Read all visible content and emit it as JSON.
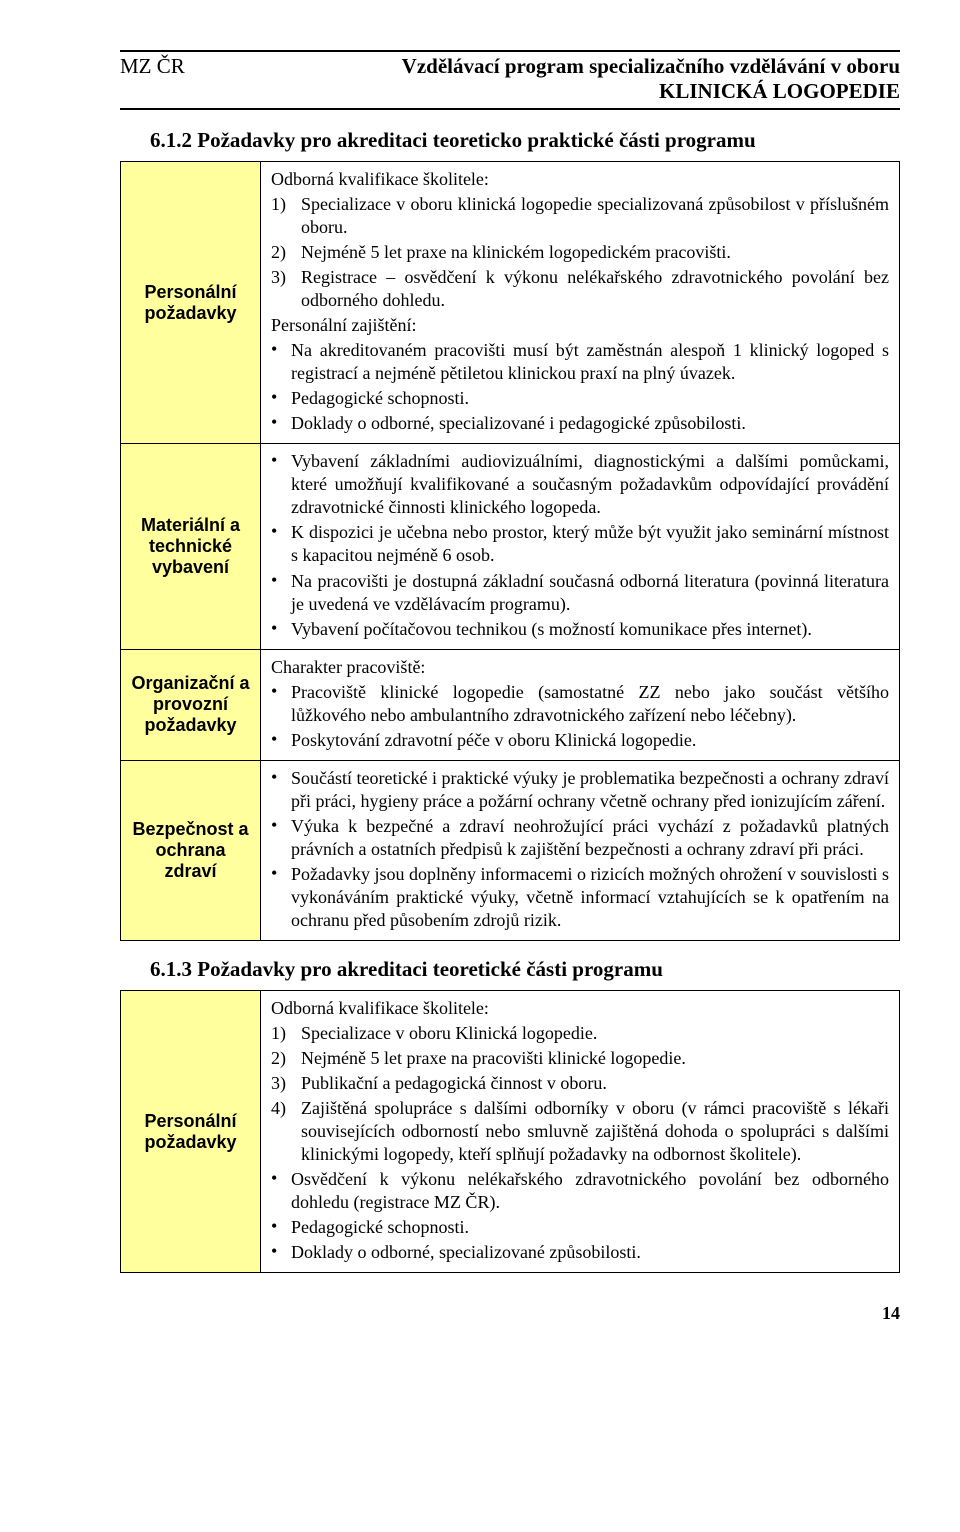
{
  "colors": {
    "label_bg": "#ffff9e",
    "border": "#000000",
    "text": "#000000",
    "page_bg": "#ffffff"
  },
  "fonts": {
    "body_family": "Times New Roman",
    "label_family": "Arial",
    "body_size_pt": 13,
    "heading_size_pt": 15
  },
  "header": {
    "left": "MZ ČR",
    "right_line1": "Vzdělávací program specializačního vzdělávání v oboru",
    "right_line2": "KLINICKÁ LOGOPEDIE"
  },
  "sec612": {
    "heading": "6.1.2   Požadavky pro akreditaci teoreticko praktické části programu",
    "rows": {
      "personnel": {
        "label": "Personální požadavky",
        "intro": "Odborná kvalifikace školitele:",
        "item1_n": "1)",
        "item1_t": "Specializace v oboru klinická logopedie specializovaná způsobilost v příslušném oboru.",
        "item2_n": "2)",
        "item2_t": "Nejméně 5 let praxe na klinickém logopedickém pracovišti.",
        "item3_n": "3)",
        "item3_t": "Registrace – osvědčení k výkonu nelékařského zdravotnického povolání bez odborného dohledu.",
        "pz": "Personální zajištění:",
        "b1": "Na akreditovaném pracovišti musí být zaměstnán alespoň 1 klinický logoped s registrací a nejméně pětiletou klinickou praxí na plný úvazek.",
        "b2": "Pedagogické schopnosti.",
        "b3": "Doklady o odborné, specializované i pedagogické způsobilosti."
      },
      "material": {
        "label": "Materiální a technické vybavení",
        "b1": "Vybavení základními audiovizuálními, diagnostickými a dalšími pomůckami, které umožňují kvalifikované a současným požadavkům odpovídající provádění zdravotnické činnosti klinického logopeda.",
        "b2": "K dispozici je učebna nebo prostor, který může být využit jako seminární místnost s kapacitou nejméně 6 osob.",
        "b3": "Na pracovišti je dostupná základní současná odborná literatura (povinná literatura je uvedená ve vzdělávacím programu).",
        "b4": "Vybavení počítačovou technikou (s možností komunikace přes internet)."
      },
      "org": {
        "label": "Organizační a provozní požadavky",
        "intro": "Charakter pracoviště:",
        "b1": "Pracoviště klinické logopedie (samostatné ZZ  nebo jako součást většího lůžkového nebo ambulantního zdravotnického zařízení nebo léčebny).",
        "b2": "Poskytování zdravotní péče v oboru Klinická logopedie."
      },
      "safety": {
        "label": "Bezpečnost a ochrana zdraví",
        "b1": "Součástí teoretické i praktické výuky je problematika bezpečnosti a ochrany zdraví při práci, hygieny práce a požární ochrany včetně ochrany před ionizujícím záření.",
        "b2": "Výuka k bezpečné a zdraví neohrožující práci vychází z požadavků platných právních a ostatních předpisů k zajištění bezpečnosti a ochrany zdraví při práci.",
        "b3": "Požadavky jsou doplněny informacemi o rizicích možných ohrožení v souvislosti s vykonáváním praktické výuky, včetně informací vztahujících se k opatřením na ochranu před působením zdrojů rizik."
      }
    }
  },
  "sec613": {
    "heading": "6.1.3   Požadavky pro akreditaci teoretické části programu",
    "personnel": {
      "label": "Personální požadavky",
      "intro": "Odborná kvalifikace školitele:",
      "item1_n": "1)",
      "item1_t": "Specializace v oboru Klinická logopedie.",
      "item2_n": "2)",
      "item2_t": "Nejméně 5 let praxe na pracovišti klinické logopedie.",
      "item3_n": "3)",
      "item3_t": "Publikační a pedagogická činnost v oboru.",
      "item4_n": "4)",
      "item4_t": "Zajištěná spolupráce s dalšími odborníky v oboru (v rámci pracoviště s lékaři souvisejících odborností nebo smluvně zajištěná dohoda o spolupráci s dalšími klinickými logopedy, kteří splňují požadavky na odbornost školitele).",
      "b1": "Osvědčení k výkonu nelékařského zdravotnického povolání bez odborného dohledu (registrace MZ ČR).",
      "b2": "Pedagogické schopnosti.",
      "b3": "Doklady o odborné, specializované způsobilosti."
    }
  },
  "page_number": "14"
}
